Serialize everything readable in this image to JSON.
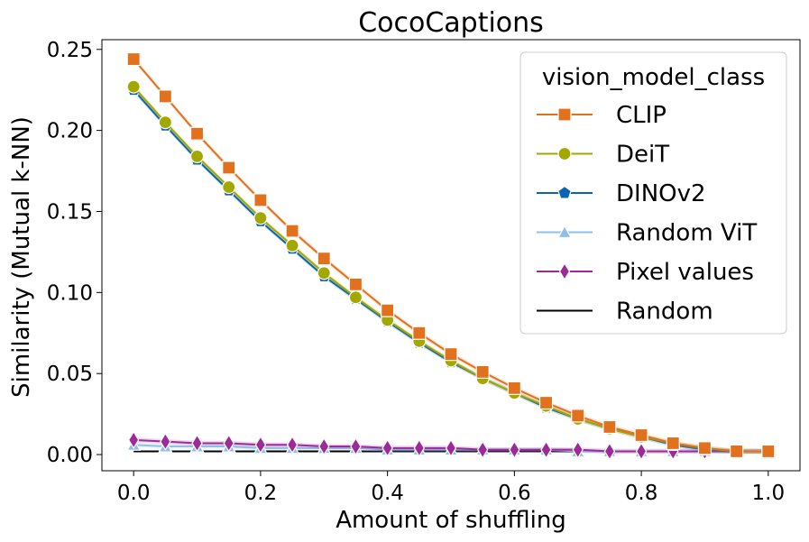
{
  "chart_data": {
    "type": "line",
    "title": "CocoCaptions",
    "xlabel": "Amount of shuffling",
    "ylabel": "Similarity (Mutual k-NN)",
    "xlim": [
      -0.05,
      1.05
    ],
    "ylim": [
      -0.01,
      0.256
    ],
    "x_ticks": [
      0.0,
      0.2,
      0.4,
      0.6,
      0.8,
      1.0
    ],
    "x_tick_labels": [
      "0.0",
      "0.2",
      "0.4",
      "0.6",
      "0.8",
      "1.0"
    ],
    "y_ticks": [
      0.0,
      0.05,
      0.1,
      0.15,
      0.2,
      0.25
    ],
    "y_tick_labels": [
      "0.00",
      "0.05",
      "0.10",
      "0.15",
      "0.20",
      "0.25"
    ],
    "grid": false,
    "legend_title": "vision_model_class",
    "legend_position": "top-right",
    "x": [
      0.0,
      0.05,
      0.1,
      0.15,
      0.2,
      0.25,
      0.3,
      0.35,
      0.4,
      0.45,
      0.5,
      0.55,
      0.6,
      0.65,
      0.7,
      0.75,
      0.8,
      0.85,
      0.9,
      0.95,
      1.0
    ],
    "series": [
      {
        "name": "CLIP",
        "color": "#e2711d",
        "marker": "square",
        "values": [
          0.244,
          0.221,
          0.198,
          0.177,
          0.157,
          0.138,
          0.121,
          0.105,
          0.089,
          0.075,
          0.062,
          0.051,
          0.041,
          0.032,
          0.024,
          0.017,
          0.012,
          0.007,
          0.004,
          0.002,
          0.002
        ]
      },
      {
        "name": "DeiT",
        "color": "#a3a800",
        "marker": "circle",
        "values": [
          0.227,
          0.205,
          0.184,
          0.165,
          0.146,
          0.129,
          0.112,
          0.097,
          0.083,
          0.07,
          0.058,
          0.047,
          0.038,
          0.03,
          0.022,
          0.016,
          0.011,
          0.007,
          0.004,
          0.002,
          0.002
        ]
      },
      {
        "name": "DINOv2",
        "color": "#0a64b4",
        "marker": "pentagon",
        "values": [
          0.225,
          0.203,
          0.182,
          0.163,
          0.144,
          0.127,
          0.11,
          0.096,
          0.082,
          0.069,
          0.057,
          0.047,
          0.038,
          0.029,
          0.022,
          0.016,
          0.011,
          0.006,
          0.003,
          0.002,
          0.002
        ]
      },
      {
        "name": "Random ViT",
        "color": "#8fc0e9",
        "marker": "triangle",
        "values": [
          0.006,
          0.005,
          0.005,
          0.005,
          0.004,
          0.004,
          0.004,
          0.004,
          0.003,
          0.003,
          0.003,
          0.003,
          0.003,
          0.003,
          0.002,
          0.002,
          0.002,
          0.002,
          0.002,
          0.002,
          0.002
        ]
      },
      {
        "name": "Pixel values",
        "color": "#9e2a9a",
        "marker": "diamond",
        "values": [
          0.009,
          0.008,
          0.007,
          0.007,
          0.006,
          0.006,
          0.005,
          0.005,
          0.004,
          0.004,
          0.004,
          0.003,
          0.003,
          0.003,
          0.003,
          0.002,
          0.002,
          0.002,
          0.002,
          0.002,
          0.002
        ]
      },
      {
        "name": "Random",
        "color": "#000000",
        "marker": "none",
        "values": [
          0.002,
          0.002,
          0.002,
          0.002,
          0.002,
          0.002,
          0.002,
          0.002,
          0.002,
          0.002,
          0.002,
          0.002,
          0.002,
          0.002,
          0.002,
          0.002,
          0.002,
          0.002,
          0.002,
          0.002,
          0.002
        ]
      }
    ]
  }
}
